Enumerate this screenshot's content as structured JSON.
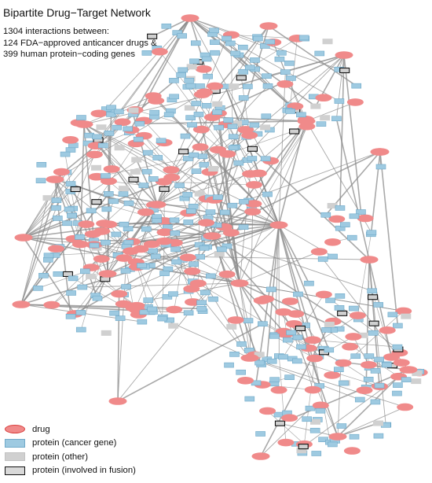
{
  "title": "Bipartite Drug−Target Network",
  "subtitle": [
    "1304 interactions between:",
    "124 FDA−approved anticancer drugs &",
    "399 human protein−coding genes"
  ],
  "legend": [
    {
      "label": "drug",
      "type": "drug"
    },
    {
      "label": "protein (cancer gene)",
      "type": "cancer"
    },
    {
      "label": "protein (other)",
      "type": "other"
    },
    {
      "label": "protein (involved in fusion)",
      "type": "fusion"
    }
  ],
  "colors": {
    "drug_fill": "#f08a8a",
    "drug_stroke": "#d9403e",
    "cancer_fill": "#9ecae1",
    "cancer_stroke": "#6fa9c8",
    "other_fill": "#d0d0d0",
    "fusion_stroke": "#111111",
    "edge": "#8c8c8c"
  }
}
